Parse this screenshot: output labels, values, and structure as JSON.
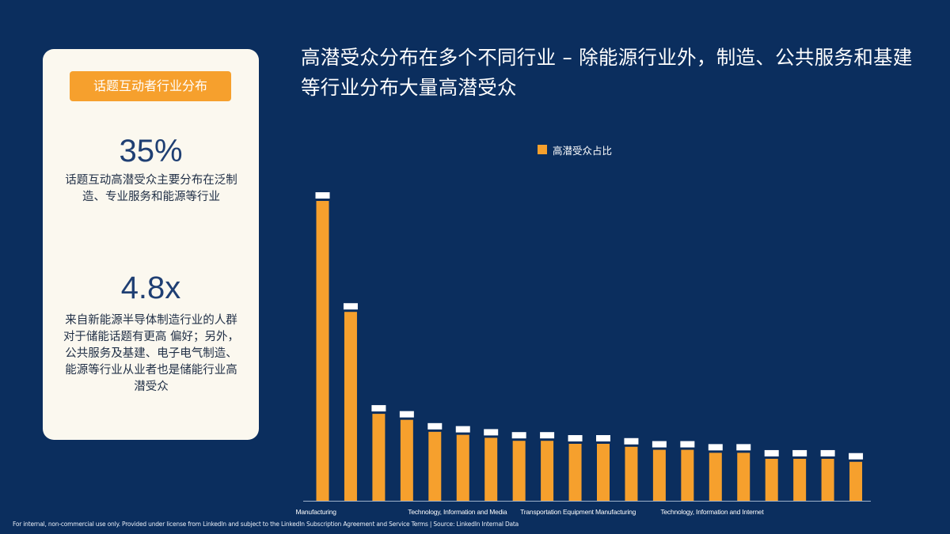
{
  "card": {
    "badge": "话题互动者行业分布",
    "stat1_value": "35%",
    "stat1_desc": "话题互动高潜受众主要分布在泛制造、专业服务和能源等行业",
    "stat2_value": "4.8x",
    "stat2_desc": "来自新能源半导体制造行业的人群对于储能话题有更高 偏好；另外，公共服务及基建、电子电气制造、能源等行业从业者也是储能行业高潜受众"
  },
  "headline": "高潜受众分布在多个不同行业 – 除能源行业外，制造、公共服务和基建等行业分布大量高潜受众",
  "footer": "For internal, non-commercial use only.  Provided under license from LinkedIn and subject to the LinkedIn Subscription Agreement and Service Terms | Source: LinkedIn Internal Data",
  "chart_data": {
    "type": "bar",
    "series": [
      {
        "name": "高潜受众占比",
        "values": [
          100,
          63,
          29,
          27,
          23,
          22,
          21,
          20,
          20,
          19,
          19,
          18,
          17,
          17,
          16,
          16,
          14,
          14,
          14,
          13
        ]
      }
    ],
    "categories": [
      "Manufacturing",
      "",
      "",
      "",
      "Technology, Information and Media",
      "",
      "",
      "",
      "Transportation Equipment Manufacturing",
      "",
      "",
      "",
      "",
      "Technology, Information and Internet",
      "",
      "",
      "",
      "",
      "",
      ""
    ],
    "value_note": "relative bar heights, tallest bar = 100 (value labels illegible in source)",
    "colors": {
      "bar": "#f6a02d",
      "axis": "#9fb2cc"
    },
    "legend_position": "top-center",
    "grid": false
  }
}
